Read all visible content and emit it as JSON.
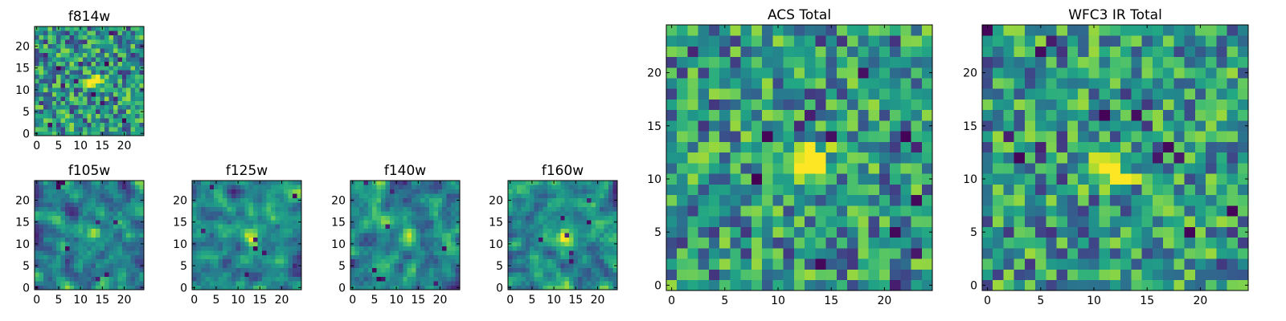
{
  "chart_data": [
    {
      "id": "f814w",
      "type": "heatmap",
      "title": "f814w",
      "xticks": [
        "0",
        "5",
        "10",
        "15",
        "20"
      ],
      "yticks": [
        "0",
        "5",
        "10",
        "15",
        "20"
      ],
      "xlim": [
        -0.5,
        24.5
      ],
      "ylim": [
        -0.5,
        24.5
      ],
      "grid_size": 25,
      "colormap": "viridis",
      "source_peak": [
        13,
        12
      ],
      "texture": "noise",
      "seed": 11
    },
    {
      "id": "f105w",
      "type": "heatmap",
      "title": "f105w",
      "xticks": [
        "0",
        "5",
        "10",
        "15",
        "20"
      ],
      "yticks": [
        "0",
        "5",
        "10",
        "15",
        "20"
      ],
      "xlim": [
        -0.5,
        24.5
      ],
      "ylim": [
        -0.5,
        24.5
      ],
      "grid_size": 25,
      "colormap": "viridis",
      "source_peak": [
        13,
        12
      ],
      "texture": "smooth",
      "seed": 23
    },
    {
      "id": "f125w",
      "type": "heatmap",
      "title": "f125w",
      "xticks": [
        "0",
        "5",
        "10",
        "15",
        "20"
      ],
      "yticks": [
        "0",
        "5",
        "10",
        "15",
        "20"
      ],
      "xlim": [
        -0.5,
        24.5
      ],
      "ylim": [
        -0.5,
        24.5
      ],
      "grid_size": 25,
      "colormap": "viridis",
      "source_peak": [
        13,
        11
      ],
      "texture": "smooth",
      "seed": 37
    },
    {
      "id": "f140w",
      "type": "heatmap",
      "title": "f140w",
      "xticks": [
        "0",
        "5",
        "10",
        "15",
        "20"
      ],
      "yticks": [
        "0",
        "5",
        "10",
        "15",
        "20"
      ],
      "xlim": [
        -0.5,
        24.5
      ],
      "ylim": [
        -0.5,
        24.5
      ],
      "grid_size": 25,
      "colormap": "viridis",
      "source_peak": [
        13,
        12
      ],
      "texture": "smooth",
      "seed": 41
    },
    {
      "id": "f160w",
      "type": "heatmap",
      "title": "f160w",
      "xticks": [
        "0",
        "5",
        "10",
        "15",
        "20"
      ],
      "yticks": [
        "0",
        "5",
        "10",
        "15",
        "20"
      ],
      "xlim": [
        -0.5,
        24.5
      ],
      "ylim": [
        -0.5,
        24.5
      ],
      "grid_size": 25,
      "colormap": "viridis",
      "source_peak": [
        13,
        11
      ],
      "texture": "smooth",
      "seed": 53
    },
    {
      "id": "acs-total",
      "type": "heatmap",
      "title": "ACS Total",
      "xticks": [
        "0",
        "5",
        "10",
        "15",
        "20"
      ],
      "yticks": [
        "0",
        "5",
        "10",
        "15",
        "20"
      ],
      "xlim": [
        -0.5,
        24.5
      ],
      "ylim": [
        -0.5,
        24.5
      ],
      "grid_size": 25,
      "colormap": "viridis",
      "source_peak": [
        13,
        12
      ],
      "texture": "noise",
      "seed": 67
    },
    {
      "id": "wfc3-ir-total",
      "type": "heatmap",
      "title": "WFC3 IR Total",
      "xticks": [
        "0",
        "5",
        "10",
        "15",
        "20"
      ],
      "yticks": [
        "0",
        "5",
        "10",
        "15",
        "20"
      ],
      "xlim": [
        -0.5,
        24.5
      ],
      "ylim": [
        -0.5,
        24.5
      ],
      "grid_size": 25,
      "colormap": "viridis",
      "source_peak": [
        12,
        11
      ],
      "texture": "noise",
      "seed": 79
    }
  ]
}
